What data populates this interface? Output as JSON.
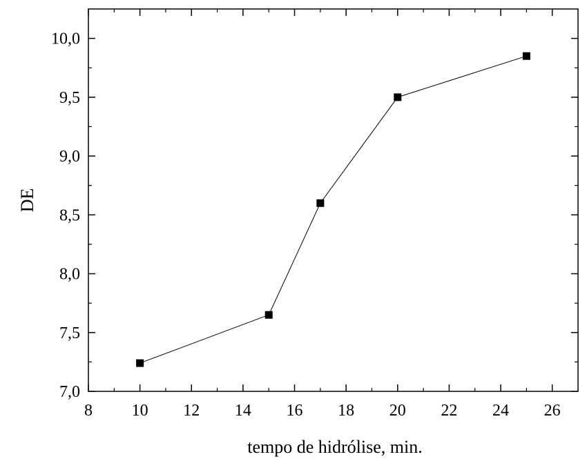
{
  "chart_data": {
    "type": "line",
    "title": "",
    "xlabel": "tempo de hidrólise,  min.",
    "ylabel": "DE",
    "xlim": [
      8,
      27
    ],
    "ylim": [
      7.0,
      10.25
    ],
    "x_ticks": [
      {
        "value": 8,
        "label": "8"
      },
      {
        "value": 10,
        "label": "10"
      },
      {
        "value": 12,
        "label": "12"
      },
      {
        "value": 14,
        "label": "14"
      },
      {
        "value": 16,
        "label": "16"
      },
      {
        "value": 18,
        "label": "18"
      },
      {
        "value": 20,
        "label": "20"
      },
      {
        "value": 22,
        "label": "22"
      },
      {
        "value": 24,
        "label": "24"
      },
      {
        "value": 26,
        "label": "26"
      }
    ],
    "y_ticks": [
      {
        "value": 7.0,
        "label": "7,0"
      },
      {
        "value": 7.5,
        "label": "7,5"
      },
      {
        "value": 8.0,
        "label": "8,0"
      },
      {
        "value": 8.5,
        "label": "8,5"
      },
      {
        "value": 9.0,
        "label": "9,0"
      },
      {
        "value": 9.5,
        "label": "9,5"
      },
      {
        "value": 10.0,
        "label": "10,0"
      }
    ],
    "grid": false,
    "marker": "square",
    "series": [
      {
        "x": [
          10,
          15,
          17,
          20,
          25
        ],
        "y": [
          7.24,
          7.65,
          8.6,
          9.5,
          9.85
        ],
        "color": "#000000"
      }
    ]
  }
}
